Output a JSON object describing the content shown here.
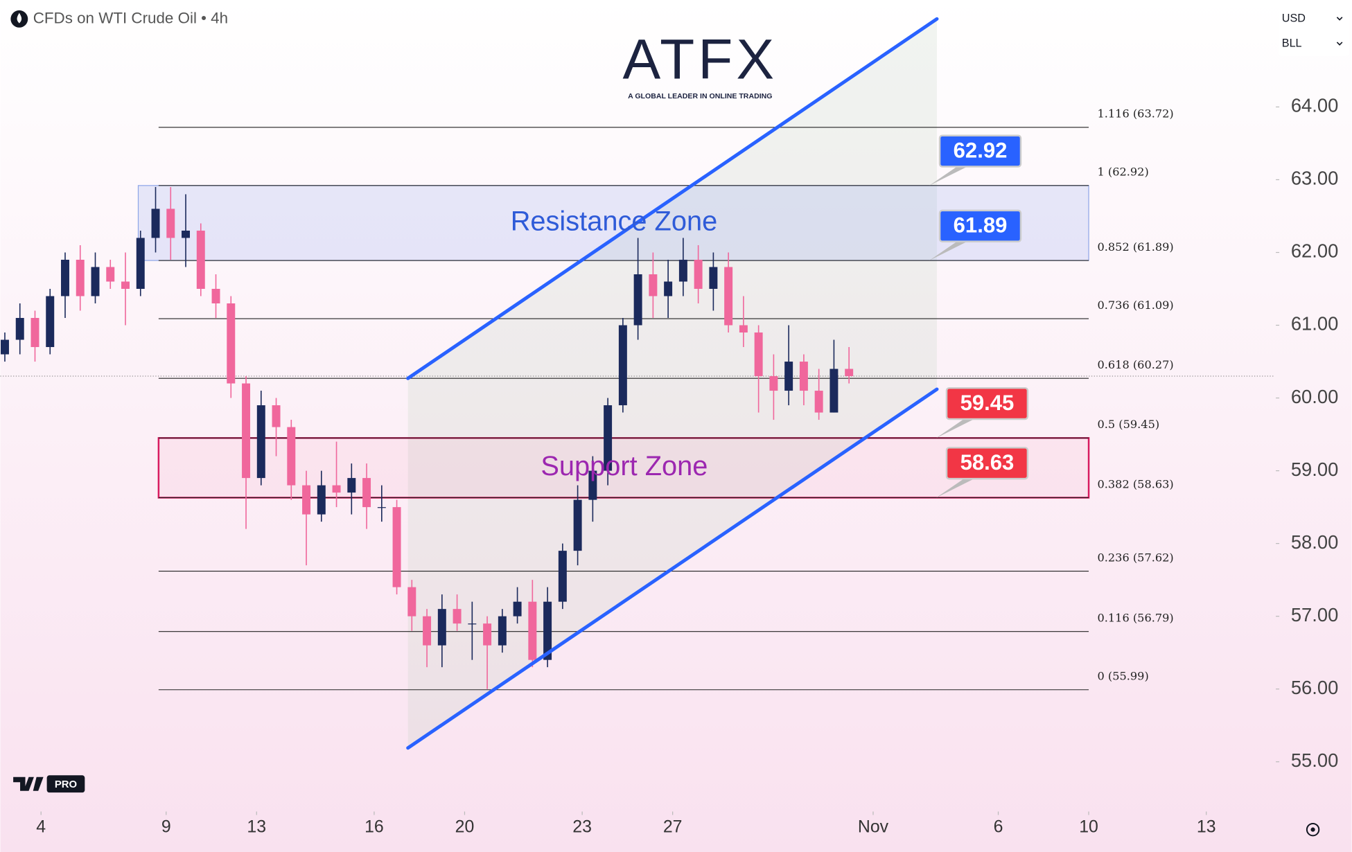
{
  "header": {
    "title": "CFDs on WTI Crude Oil • 4h",
    "currency": "USD",
    "unit": "BLL"
  },
  "logo": {
    "name": "ATFX",
    "tagline": "A GLOBAL LEADER IN ONLINE TRADING"
  },
  "badge": "PRO",
  "chart_data": {
    "type": "candlestick",
    "x": [
      0,
      1,
      2,
      3,
      4,
      5,
      6,
      7,
      8,
      9,
      10,
      11,
      12,
      13,
      14,
      15,
      16,
      17,
      18,
      19,
      20,
      21,
      22,
      23,
      24,
      25,
      26,
      27,
      28,
      29,
      30,
      31,
      32,
      33,
      34,
      35,
      36,
      37,
      38,
      39,
      40,
      41,
      42,
      43,
      44,
      45,
      46,
      47,
      48,
      49,
      50,
      51,
      52,
      53,
      54,
      55,
      56
    ],
    "open": [
      60.6,
      60.8,
      61.1,
      60.7,
      61.4,
      61.9,
      61.4,
      61.8,
      61.6,
      61.5,
      62.2,
      62.6,
      62.2,
      62.3,
      61.5,
      61.3,
      60.2,
      58.9,
      59.9,
      59.6,
      58.8,
      58.4,
      58.8,
      58.7,
      58.9,
      58.5,
      58.5,
      57.4,
      57.0,
      56.6,
      57.1,
      56.9,
      56.9,
      56.6,
      57.0,
      57.2,
      56.4,
      57.2,
      57.9,
      58.6,
      59.0,
      59.9,
      61.0,
      61.7,
      61.4,
      61.6,
      61.9,
      61.5,
      61.8,
      61.0,
      60.9,
      60.3,
      60.1,
      60.5,
      60.1,
      59.8,
      60.4
    ],
    "high": [
      60.9,
      61.3,
      61.2,
      61.5,
      62.0,
      62.1,
      62.0,
      61.9,
      62.0,
      62.3,
      62.9,
      62.9,
      62.8,
      62.4,
      61.7,
      61.4,
      60.3,
      60.1,
      60.0,
      59.7,
      59.0,
      59.0,
      59.4,
      59.1,
      59.1,
      58.8,
      58.6,
      57.5,
      57.1,
      57.3,
      57.3,
      57.2,
      57.0,
      57.1,
      57.4,
      57.5,
      57.4,
      58.0,
      58.8,
      59.2,
      60.0,
      61.1,
      62.2,
      62.0,
      61.9,
      62.2,
      62.1,
      62.0,
      62.0,
      61.4,
      61.0,
      60.6,
      61.0,
      60.6,
      60.4,
      60.8,
      60.7
    ],
    "low": [
      60.5,
      60.6,
      60.5,
      60.6,
      61.1,
      61.2,
      61.3,
      61.5,
      61.0,
      61.4,
      62.0,
      61.9,
      61.8,
      61.4,
      61.1,
      60.0,
      58.2,
      58.8,
      59.2,
      58.6,
      57.7,
      58.3,
      58.5,
      58.4,
      58.2,
      58.3,
      57.3,
      56.8,
      56.3,
      56.3,
      56.8,
      56.4,
      56.0,
      56.5,
      56.9,
      56.3,
      56.3,
      57.1,
      57.7,
      58.3,
      58.8,
      59.8,
      60.8,
      61.1,
      61.1,
      61.4,
      61.3,
      61.2,
      60.9,
      60.7,
      59.8,
      59.7,
      59.9,
      59.9,
      59.7,
      59.8,
      60.2
    ],
    "close": [
      60.8,
      61.1,
      60.7,
      61.4,
      61.9,
      61.4,
      61.8,
      61.6,
      61.5,
      62.2,
      62.6,
      62.2,
      62.3,
      61.5,
      61.3,
      60.2,
      58.9,
      59.9,
      59.6,
      58.8,
      58.4,
      58.8,
      58.7,
      58.9,
      58.5,
      58.5,
      57.4,
      57.0,
      56.6,
      57.1,
      56.9,
      56.9,
      56.6,
      57.0,
      57.2,
      56.4,
      57.2,
      57.9,
      58.6,
      59.0,
      59.9,
      61.0,
      61.7,
      61.4,
      61.6,
      61.9,
      61.5,
      61.8,
      61.0,
      60.9,
      60.3,
      60.1,
      60.5,
      60.1,
      59.8,
      60.4,
      60.3
    ],
    "up_color": "#1b2a5c",
    "down_color": "#f0679c",
    "xlim": [
      -0.3,
      84.2
    ],
    "xticks": [
      {
        "value": 2.4,
        "label": "4"
      },
      {
        "value": 10.7,
        "label": "9"
      },
      {
        "value": 16.7,
        "label": "13"
      },
      {
        "value": 24.5,
        "label": "16"
      },
      {
        "value": 30.5,
        "label": "20"
      },
      {
        "value": 38.3,
        "label": "23"
      },
      {
        "value": 44.3,
        "label": "27"
      },
      {
        "value": 57.6,
        "label": "Nov"
      },
      {
        "value": 65.9,
        "label": "6"
      },
      {
        "value": 71.9,
        "label": "10"
      },
      {
        "value": 79.7,
        "label": "13"
      }
    ],
    "ylim": [
      54.34,
      65.47
    ],
    "yticks": [
      {
        "value": 55,
        "label": "55.00"
      },
      {
        "value": 56,
        "label": "56.00"
      },
      {
        "value": 57,
        "label": "57.00"
      },
      {
        "value": 58,
        "label": "58.00"
      },
      {
        "value": 59,
        "label": "59.00"
      },
      {
        "value": 60,
        "label": "60.00"
      },
      {
        "value": 61,
        "label": "61.00"
      },
      {
        "value": 62,
        "label": "62.00"
      },
      {
        "value": 63,
        "label": "63.00"
      },
      {
        "value": 64,
        "label": "64.00"
      }
    ],
    "fib": {
      "x0": 10.2,
      "x1": 71.9,
      "levels": [
        {
          "value": 63.72,
          "label": "1.116 (63.72)"
        },
        {
          "value": 62.92,
          "label": "1 (62.92)"
        },
        {
          "value": 61.89,
          "label": "0.852 (61.89)"
        },
        {
          "value": 61.09,
          "label": "0.736 (61.09)"
        },
        {
          "value": 60.27,
          "label": "0.618 (60.27)"
        },
        {
          "value": 59.45,
          "label": "0.5 (59.45)"
        },
        {
          "value": 58.63,
          "label": "0.382 (58.63)"
        },
        {
          "value": 57.62,
          "label": "0.236 (57.62)"
        },
        {
          "value": 56.79,
          "label": "0.116 (56.79)"
        },
        {
          "value": 55.99,
          "label": "0 (55.99)"
        }
      ]
    },
    "zones": [
      {
        "label": "Resistance Zone",
        "low": 61.89,
        "high": 62.92,
        "x0": 8.85,
        "x1": 71.9,
        "color": "#2f5bd8"
      },
      {
        "label": "Support Zone",
        "low": 58.63,
        "high": 59.45,
        "x0": 10.2,
        "x1": 71.9,
        "color": "#9c27b0"
      }
    ],
    "tags": [
      {
        "value": 62.92,
        "color": "#2962ff"
      },
      {
        "value": 61.89,
        "color": "#2962ff"
      },
      {
        "value": 59.45,
        "color": "#f23645"
      },
      {
        "value": 58.63,
        "color": "#f23645"
      }
    ],
    "channel": {
      "x": [
        26.74,
        61.83
      ],
      "upper": [
        60.27,
        65.21
      ],
      "lower": [
        55.19,
        60.12
      ],
      "color": "#2962ff"
    }
  }
}
